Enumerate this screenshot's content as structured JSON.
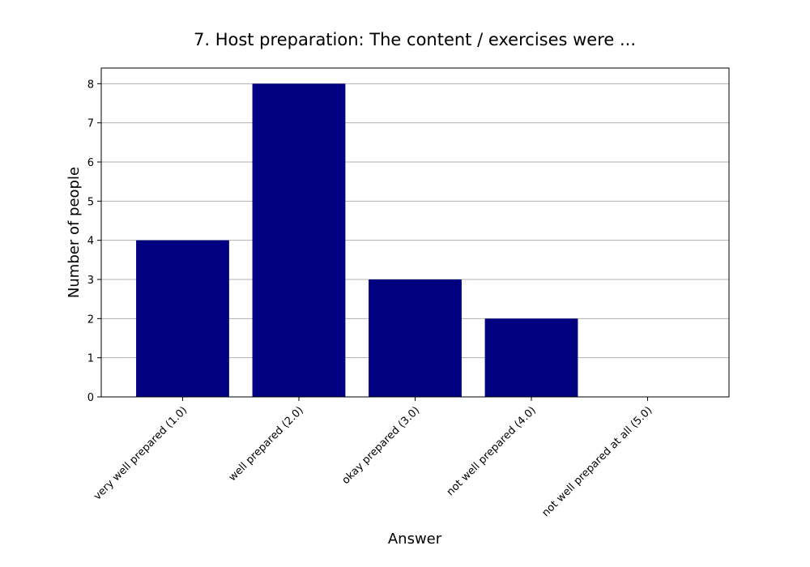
{
  "chart_data": {
    "type": "bar",
    "title": "7. Host preparation: The content / exercises were ...",
    "xlabel": "Answer",
    "ylabel": "Number of people",
    "categories": [
      "very well prepared (1.0)",
      "well prepared (2.0)",
      "okay prepared (3.0)",
      "not well prepared (4.0)",
      "not well prepared at all (5.0)"
    ],
    "values": [
      4,
      8,
      3,
      2,
      0
    ],
    "ylim": [
      0,
      8.4
    ],
    "yticks": [
      0,
      1,
      2,
      3,
      4,
      5,
      6,
      7,
      8
    ],
    "grid": true,
    "bar_color": "#000080"
  }
}
